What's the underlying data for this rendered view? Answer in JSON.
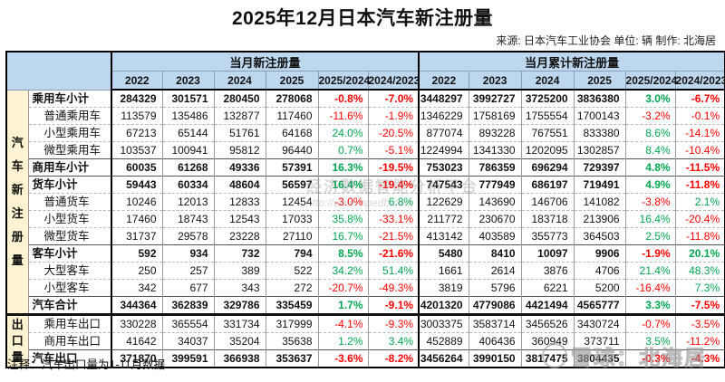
{
  "title": "2025年12月日本汽车新注册量",
  "source": "来源: 日本汽车工业协会 单位: 辆 制作: 北海居",
  "note": "注释：汽车出口量为1-11月数据",
  "watermarks": {
    "center_line1": "经济数据智能分析平台",
    "center_line2": "http://www.hpedb.com",
    "bottom_right": "雪球：北海居"
  },
  "colors": {
    "header_bg": "#BDD7EE",
    "sidebar_bg": "#FDF3D2",
    "positive": "#00A651",
    "negative": "#FF0000"
  },
  "chart_data": {
    "type": "table",
    "title": "2025年12月日本汽车新注册量",
    "unit": "辆",
    "month_group_header": "当月新注册量",
    "cumulative_group_header": "当月累计新注册量",
    "columns": [
      "2022",
      "2023",
      "2024",
      "2025",
      "2025/2024",
      "2024/2023"
    ],
    "row_groups": [
      {
        "label": "汽车新注册量",
        "rows": [
          {
            "label": "乘用车小计",
            "bold": true,
            "indent": false,
            "sep": "none",
            "monthly": [
              "284329",
              "301571",
              "280450",
              "278068",
              "-0.8%",
              "-7.0%"
            ],
            "cumulative": [
              "3448297",
              "3992727",
              "3725200",
              "3836380",
              "3.0%",
              "-6.7%"
            ]
          },
          {
            "label": "普通乘用车",
            "bold": false,
            "indent": true,
            "sep": "dash",
            "monthly": [
              "113579",
              "135486",
              "132877",
              "117460",
              "-11.6%",
              "-1.9%"
            ],
            "cumulative": [
              "1346229",
              "1758169",
              "1755554",
              "1700143",
              "-3.2%",
              "-0.1%"
            ]
          },
          {
            "label": "小型乘用车",
            "bold": false,
            "indent": true,
            "sep": "dash",
            "monthly": [
              "67213",
              "65144",
              "51761",
              "64168",
              "24.0%",
              "-20.5%"
            ],
            "cumulative": [
              "877074",
              "893228",
              "767551",
              "833380",
              "8.6%",
              "-14.1%"
            ]
          },
          {
            "label": "微型乘用车",
            "bold": false,
            "indent": true,
            "sep": "dash",
            "monthly": [
              "103537",
              "100941",
              "95812",
              "96440",
              "0.7%",
              "-5.1%"
            ],
            "cumulative": [
              "1224994",
              "1341330",
              "1202095",
              "1302857",
              "8.4%",
              "-10.4%"
            ]
          },
          {
            "label": "商用车小计",
            "bold": true,
            "indent": false,
            "sep": "solid",
            "monthly": [
              "60035",
              "61268",
              "49336",
              "57391",
              "16.3%",
              "-19.5%"
            ],
            "cumulative": [
              "753023",
              "786359",
              "696294",
              "729397",
              "4.8%",
              "-11.5%"
            ]
          },
          {
            "label": "货车小计",
            "bold": true,
            "indent": false,
            "sep": "solid",
            "monthly": [
              "59443",
              "60334",
              "48604",
              "56597",
              "16.4%",
              "-19.4%"
            ],
            "cumulative": [
              "747543",
              "777949",
              "686197",
              "719491",
              "4.9%",
              "-11.8%"
            ]
          },
          {
            "label": "普通货车",
            "bold": false,
            "indent": true,
            "sep": "dash",
            "monthly": [
              "10246",
              "12013",
              "12833",
              "12454",
              "-3.0%",
              "6.8%"
            ],
            "cumulative": [
              "122629",
              "143690",
              "146706",
              "141082",
              "-3.8%",
              "2.1%"
            ]
          },
          {
            "label": "小型货车",
            "bold": false,
            "indent": true,
            "sep": "dash",
            "monthly": [
              "17460",
              "18743",
              "12543",
              "17033",
              "35.8%",
              "-33.1%"
            ],
            "cumulative": [
              "211772",
              "230670",
              "183718",
              "213906",
              "16.4%",
              "-20.4%"
            ]
          },
          {
            "label": "微型货车",
            "bold": false,
            "indent": true,
            "sep": "dash",
            "monthly": [
              "31737",
              "29578",
              "23228",
              "27110",
              "16.7%",
              "-21.5%"
            ],
            "cumulative": [
              "413142",
              "403589",
              "355773",
              "364503",
              "2.5%",
              "-11.8%"
            ]
          },
          {
            "label": "客车小计",
            "bold": true,
            "indent": false,
            "sep": "solid",
            "monthly": [
              "592",
              "934",
              "732",
              "794",
              "8.5%",
              "-21.6%"
            ],
            "cumulative": [
              "5480",
              "8410",
              "10097",
              "9906",
              "-1.9%",
              "20.1%"
            ]
          },
          {
            "label": "大型客车",
            "bold": false,
            "indent": true,
            "sep": "dash",
            "monthly": [
              "250",
              "257",
              "389",
              "522",
              "34.2%",
              "51.4%"
            ],
            "cumulative": [
              "1661",
              "2614",
              "3876",
              "4706",
              "21.4%",
              "48.3%"
            ]
          },
          {
            "label": "小型客车",
            "bold": false,
            "indent": true,
            "sep": "dash",
            "monthly": [
              "342",
              "677",
              "343",
              "272",
              "-20.7%",
              "-49.3%"
            ],
            "cumulative": [
              "3819",
              "5796",
              "6221",
              "5200",
              "-16.4%",
              "7.3%"
            ]
          },
          {
            "label": "汽车合计",
            "bold": true,
            "indent": false,
            "sep": "solid",
            "monthly": [
              "344364",
              "362839",
              "329786",
              "335459",
              "1.7%",
              "-9.1%"
            ],
            "cumulative": [
              "4201320",
              "4779086",
              "4421494",
              "4565777",
              "3.3%",
              "-7.5%"
            ]
          }
        ]
      },
      {
        "label": "出口量",
        "rows": [
          {
            "label": "乘用车出口",
            "bold": false,
            "indent": true,
            "sep": "thick",
            "monthly": [
              "330228",
              "365554",
              "331734",
              "317999",
              "-4.1%",
              "-9.3%"
            ],
            "cumulative": [
              "3003375",
              "3583714",
              "3456526",
              "3430724",
              "-0.7%",
              "-3.5%"
            ]
          },
          {
            "label": "商用车出口",
            "bold": false,
            "indent": true,
            "sep": "dash",
            "monthly": [
              "41642",
              "34037",
              "35204",
              "35638",
              "1.2%",
              "3.4%"
            ],
            "cumulative": [
              "452889",
              "406436",
              "360949",
              "373711",
              "3.5%",
              "-11.2%"
            ]
          },
          {
            "label": "汽车出口",
            "bold": true,
            "indent": false,
            "sep": "solid",
            "monthly": [
              "371870",
              "399591",
              "366938",
              "353637",
              "-3.6%",
              "-8.2%"
            ],
            "cumulative": [
              "3456264",
              "3990150",
              "3817475",
              "3804435",
              "-0.3%",
              "-4.3%"
            ]
          }
        ]
      }
    ]
  }
}
